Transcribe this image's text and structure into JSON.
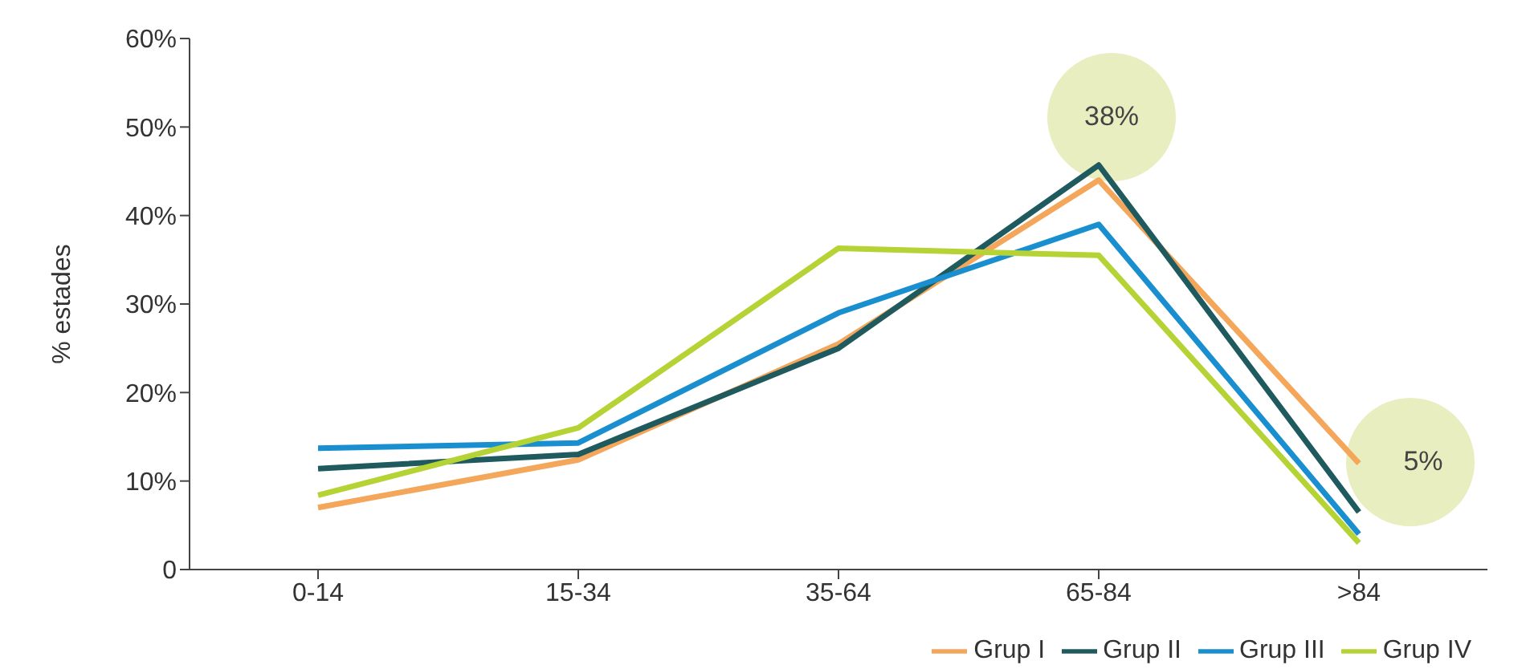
{
  "chart_data": {
    "type": "line",
    "ylabel": "% estades",
    "categories": [
      "0-14",
      "15-34",
      "35-64",
      "65-84",
      ">84"
    ],
    "series": [
      {
        "name": "Grup I",
        "color": "#f4a65a",
        "values": [
          7,
          12.4,
          25.5,
          44,
          12
        ]
      },
      {
        "name": "Grup II",
        "color": "#1e5a5e",
        "values": [
          11.4,
          13,
          25,
          45.7,
          6.5
        ]
      },
      {
        "name": "Grup III",
        "color": "#1a8fd0",
        "values": [
          13.7,
          14.3,
          29,
          39,
          4
        ]
      },
      {
        "name": "Grup IV",
        "color": "#b5d334",
        "values": [
          8.4,
          16,
          36.3,
          35.5,
          3
        ]
      }
    ],
    "ylim": [
      0,
      60
    ],
    "yticks": [
      0,
      {
        "value": 10,
        "label": "10%"
      },
      {
        "value": 20,
        "label": "20%"
      },
      {
        "value": 30,
        "label": "30%"
      },
      {
        "value": 40,
        "label": "40%"
      },
      {
        "value": 50,
        "label": "50%"
      },
      {
        "value": 60,
        "label": "60%"
      }
    ],
    "annotations": [
      "38%",
      "5%"
    ],
    "legend": "bottom right",
    "grid": false,
    "marker": "none",
    "line_style": "solid"
  }
}
